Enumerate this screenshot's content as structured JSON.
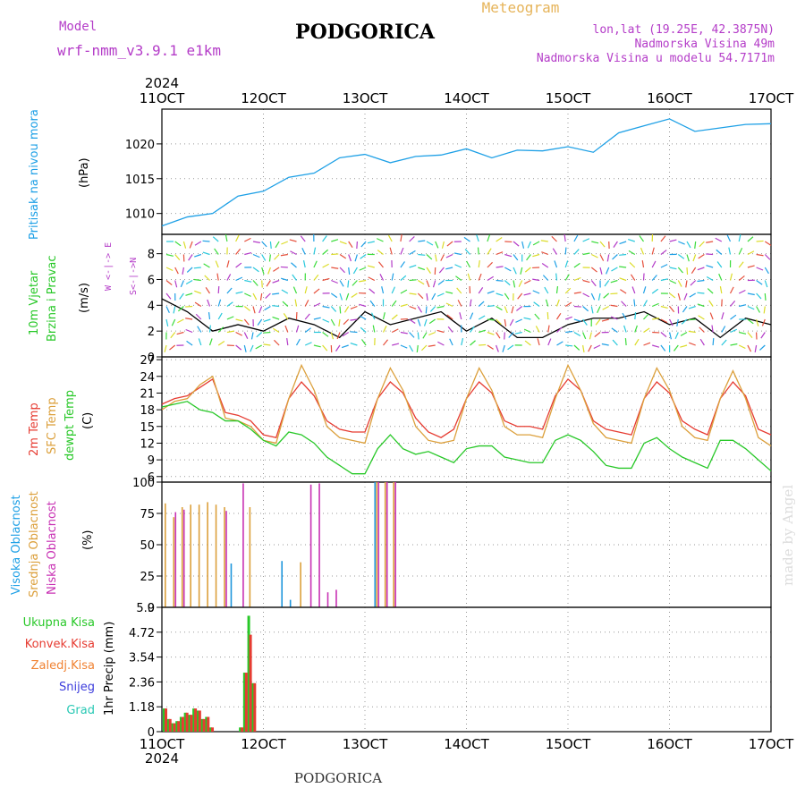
{
  "header": {
    "model_label": "Model",
    "model_name": "wrf-nmm_v3.9.1 e1km",
    "station": "PODGORICA",
    "meteogram": "Meteogram",
    "lonlat": "lon,lat (19.25E, 42.3875N)",
    "elevation": "Nadmorska Visina 49m",
    "model_elevation": "Nadmorska Visina u modelu 54.7171m",
    "year_top": "2024",
    "year_bottom": "2024",
    "footer_station": "PODGORICA",
    "credit": "made by Angel"
  },
  "x_ticks": [
    "11OCT",
    "12OCT",
    "13OCT",
    "14OCT",
    "15OCT",
    "16OCT",
    "17OCT"
  ],
  "colors": {
    "pressure": "#1ea0e6",
    "temp2m": "#e63c32",
    "sfc": "#dca03c",
    "dewpt": "#28c828",
    "high": "#1e96dc",
    "mid": "#dca03c",
    "low": "#c832b4",
    "total": "#28c828",
    "konv": "#e63c32",
    "zaledj": "#f08232",
    "snijeg": "#3c3cdc",
    "grad": "#28c8b4"
  },
  "panels": {
    "pressure": {
      "label": "Pritisak na nivou mora",
      "unit": "(hPa)",
      "ticks": [
        "1010",
        "1015",
        "1020"
      ]
    },
    "wind": {
      "label1": "10m Vjetar",
      "label2": "Brzina i Pravac",
      "unit": "(m/s)",
      "ticks": [
        "0",
        "2",
        "4",
        "6",
        "8"
      ],
      "compass": "W <-|-> E",
      "compass2": "S<-|->N"
    },
    "temp": {
      "label1": "2m Temp",
      "label2": "SFC Temp",
      "label3": "dewpt Temp",
      "unit": "(C)",
      "ticks": [
        "6",
        "9",
        "12",
        "15",
        "18",
        "21",
        "24",
        "27"
      ]
    },
    "cloud": {
      "label1": "Visoka Oblacnost",
      "label2": "Srednja Oblacnost",
      "label3": "Niska Oblacnost",
      "unit": "(%)",
      "ticks": [
        "0",
        "25",
        "50",
        "75",
        "100"
      ]
    },
    "precip": {
      "label": "1hr Precip (mm)",
      "ticks": [
        "0",
        "1.18",
        "2.36",
        "3.54",
        "4.72",
        "5.9"
      ],
      "legend": [
        "Ukupna Kisa",
        "Konvek.Kisa",
        "Zaledj.Kisa",
        "Snijeg",
        "Grad"
      ]
    }
  },
  "chart_data": [
    {
      "type": "line",
      "title": "",
      "ylabel": "Pritisak na nivou mora (hPa)",
      "ylim": [
        1007,
        1025
      ],
      "x_hours": [
        0,
        6,
        12,
        18,
        24,
        30,
        36,
        42,
        48,
        54,
        60,
        66,
        72,
        78,
        84,
        90,
        96,
        102,
        108,
        114,
        120,
        126,
        132,
        138,
        144
      ],
      "series": [
        {
          "name": "",
          "values": [
            1008.2,
            1009.5,
            1010.0,
            1012.5,
            1013.2,
            1015.2,
            1015.8,
            1018.0,
            1018.5,
            1017.3,
            1018.2,
            1018.4,
            1019.3,
            1018.0,
            1019.1,
            1019.0,
            1019.6,
            1018.8,
            1021.6,
            1022.6,
            1023.6,
            1021.8,
            1022.3,
            1022.8,
            1022.9
          ]
        }
      ]
    },
    {
      "type": "line",
      "title": "",
      "ylabel": "Brzina i Pravac (m/s)",
      "ylim": [
        0,
        9.5
      ],
      "x_hours": [
        0,
        6,
        12,
        18,
        24,
        30,
        36,
        42,
        48,
        54,
        60,
        66,
        72,
        78,
        84,
        90,
        96,
        102,
        108,
        114,
        120,
        126,
        132,
        138,
        144
      ],
      "series": [
        {
          "name": "",
          "values": [
            4.5,
            3.5,
            2.0,
            2.5,
            2.0,
            3.0,
            2.5,
            1.5,
            3.5,
            2.5,
            3.0,
            3.5,
            2.0,
            3.0,
            1.5,
            1.5,
            2.5,
            3.0,
            3.0,
            3.5,
            2.5,
            3.0,
            1.5,
            3.0,
            2.5
          ]
        }
      ]
    },
    {
      "type": "line",
      "title": "",
      "ylabel": "(C)",
      "ylim": [
        5,
        27.5
      ],
      "x_hours": [
        0,
        3,
        6,
        9,
        12,
        15,
        18,
        21,
        24,
        27,
        30,
        33,
        36,
        39,
        42,
        45,
        48,
        51,
        54,
        57,
        60,
        63,
        66,
        69,
        72,
        75,
        78,
        81,
        84,
        87,
        90,
        93,
        96,
        99,
        102,
        105,
        108,
        111,
        114,
        117,
        120,
        123,
        126,
        129,
        132,
        135,
        138,
        141,
        144
      ],
      "series": [
        {
          "name": "2m Temp",
          "values": [
            19.0,
            20.0,
            20.5,
            22.0,
            23.5,
            17.5,
            17.0,
            16.0,
            13.5,
            13.0,
            20.0,
            23.0,
            20.5,
            16.0,
            14.5,
            14.0,
            14.0,
            20.0,
            23.0,
            21.0,
            16.5,
            14.0,
            13.0,
            14.5,
            20.0,
            23.0,
            21.0,
            16.0,
            15.0,
            15.0,
            14.5,
            20.5,
            23.5,
            21.5,
            16.0,
            14.5,
            14.0,
            13.5,
            20.0,
            23.0,
            21.0,
            16.0,
            14.5,
            13.5,
            20.0,
            23.0,
            20.5,
            14.5,
            13.5
          ]
        },
        {
          "name": "SFC Temp",
          "values": [
            18.0,
            19.5,
            20.0,
            22.5,
            24.0,
            16.5,
            16.0,
            15.0,
            12.5,
            12.0,
            20.0,
            26.0,
            21.5,
            15.0,
            13.0,
            12.5,
            12.0,
            20.0,
            25.5,
            21.5,
            15.0,
            12.5,
            12.0,
            12.5,
            20.0,
            25.5,
            21.5,
            15.0,
            13.5,
            13.5,
            13.0,
            20.0,
            26.0,
            21.5,
            15.5,
            13.0,
            12.5,
            12.0,
            20.0,
            25.5,
            21.5,
            15.0,
            13.0,
            12.5,
            20.0,
            25.0,
            20.0,
            13.0,
            11.5
          ]
        },
        {
          "name": "dewpt Temp",
          "values": [
            18.5,
            19.0,
            19.5,
            18.0,
            17.5,
            16.0,
            16.0,
            14.5,
            12.5,
            11.5,
            14.0,
            13.5,
            12.0,
            9.5,
            8.0,
            6.5,
            6.5,
            11.0,
            13.5,
            11.0,
            10.0,
            10.5,
            9.5,
            8.5,
            11.0,
            11.5,
            11.5,
            9.5,
            9.0,
            8.5,
            8.5,
            12.5,
            13.5,
            12.5,
            10.5,
            8.0,
            7.5,
            7.5,
            12.0,
            13.0,
            11.0,
            9.5,
            8.5,
            7.5,
            12.5,
            12.5,
            11.0,
            9.0,
            7.0
          ]
        }
      ]
    },
    {
      "type": "bar",
      "title": "",
      "ylabel": "(%)",
      "ylim": [
        0,
        100
      ],
      "x_hours": [
        0,
        2,
        4,
        6,
        8,
        10,
        12,
        14,
        16,
        18,
        20,
        22,
        24,
        26,
        28,
        30,
        32,
        34,
        36,
        38,
        40,
        42,
        44,
        46,
        48,
        50,
        52,
        54,
        56,
        58
      ],
      "series": [
        {
          "name": "Visoka Oblacnost",
          "values": [
            0,
            0,
            0,
            0,
            0,
            0,
            0,
            0,
            35,
            0,
            0,
            0,
            0,
            0,
            37,
            6,
            0,
            0,
            0,
            0,
            0,
            0,
            0,
            0,
            0,
            100,
            0,
            0,
            0,
            0
          ]
        },
        {
          "name": "Srednja Oblacnost",
          "values": [
            83,
            72,
            80,
            82,
            82,
            84,
            82,
            80,
            0,
            0,
            80,
            0,
            0,
            0,
            0,
            0,
            36,
            0,
            0,
            0,
            0,
            0,
            0,
            0,
            0,
            100,
            100,
            100,
            0,
            0
          ]
        },
        {
          "name": "Niska Oblacnost",
          "values": [
            0,
            76,
            78,
            0,
            0,
            0,
            0,
            77,
            0,
            99,
            0,
            0,
            0,
            0,
            0,
            0,
            0,
            98,
            99,
            12,
            14,
            0,
            0,
            0,
            0,
            100,
            100,
            100,
            0,
            0
          ]
        }
      ]
    },
    {
      "type": "bar",
      "title": "",
      "ylabel": "1hr Precip (mm)",
      "ylim": [
        0,
        5.9
      ],
      "x_hours": [
        0,
        1,
        2,
        3,
        4,
        5,
        6,
        7,
        8,
        9,
        10,
        11,
        12,
        13,
        14,
        15,
        16,
        17,
        18,
        19,
        20,
        21,
        22,
        23,
        24
      ],
      "series": [
        {
          "name": "Ukupna Kisa",
          "values": [
            1.1,
            0.6,
            0.4,
            0.5,
            0.7,
            0.9,
            0.8,
            1.1,
            1.0,
            0.6,
            0.7,
            0.2,
            0.0,
            0.0,
            0.0,
            0.0,
            0.0,
            0.0,
            0.2,
            2.8,
            5.5,
            2.3,
            0.0,
            0.0,
            0.0
          ]
        },
        {
          "name": "Konvek.Kisa",
          "values": [
            1.1,
            0.6,
            0.4,
            0.5,
            0.7,
            0.9,
            0.8,
            1.1,
            1.0,
            0.6,
            0.7,
            0.2,
            0.0,
            0.0,
            0.0,
            0.0,
            0.0,
            0.0,
            0.2,
            2.8,
            4.6,
            2.3,
            0.0,
            0.0,
            0.0
          ]
        }
      ]
    }
  ]
}
